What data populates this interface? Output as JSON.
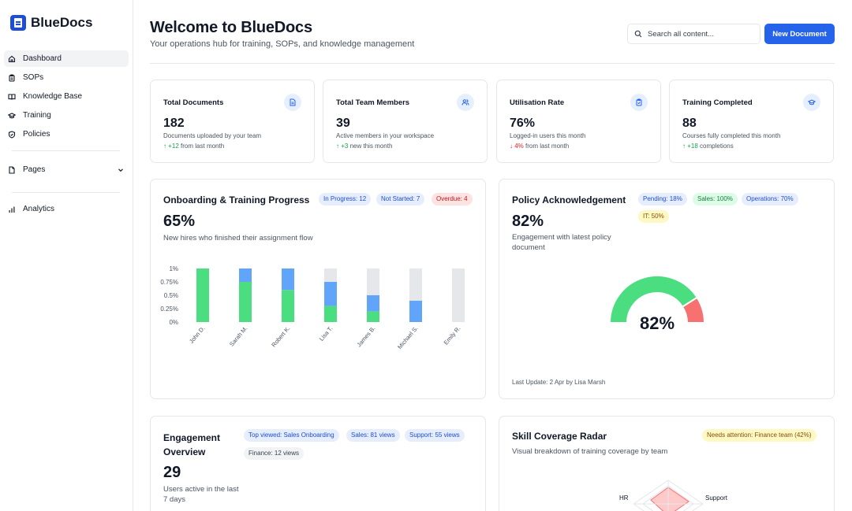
{
  "app": {
    "name": "BlueDocs"
  },
  "sidebar": {
    "items": [
      {
        "label": "Dashboard",
        "icon": "home-icon",
        "active": true
      },
      {
        "label": "SOPs",
        "icon": "clipboard-icon",
        "active": false
      },
      {
        "label": "Knowledge Base",
        "icon": "book-icon",
        "active": false
      },
      {
        "label": "Training",
        "icon": "graduation-cap-icon",
        "active": false
      },
      {
        "label": "Policies",
        "icon": "shield-icon",
        "active": false
      }
    ],
    "pages_label": "Pages",
    "analytics_label": "Analytics"
  },
  "header": {
    "title": "Welcome to BlueDocs",
    "subtitle": "Your operations hub for training, SOPs, and knowledge management",
    "search_placeholder": "Search all content...",
    "new_document_label": "New Document"
  },
  "stats": [
    {
      "label": "Total Documents",
      "value": "182",
      "desc": "Documents uploaded by your team",
      "trend_arrow": "↑",
      "trend_value": "+12",
      "trend_text": "from last month",
      "trend_dir": "up",
      "icon": "document-icon"
    },
    {
      "label": "Total Team Members",
      "value": "39",
      "desc": "Active members in your workspace",
      "trend_arrow": "↑",
      "trend_value": "+3",
      "trend_text": "new this month",
      "trend_dir": "up",
      "icon": "users-icon"
    },
    {
      "label": "Utilisation Rate",
      "value": "76%",
      "desc": "Logged-in users this month",
      "trend_arrow": "↓",
      "trend_value": "4%",
      "trend_text": "from last month",
      "trend_dir": "down",
      "icon": "clipboard-check-icon"
    },
    {
      "label": "Training Completed",
      "value": "88",
      "desc": "Courses fully completed this month",
      "trend_arrow": "↑",
      "trend_value": "+18",
      "trend_text": "completions",
      "trend_dir": "up",
      "icon": "graduation-cap-icon"
    }
  ],
  "onboarding": {
    "title": "Onboarding & Training Progress",
    "pills": [
      "In Progress: 12",
      "Not Started: 7",
      "Overdue: 4"
    ],
    "value": "65%",
    "desc": "New hires who finished their assignment flow"
  },
  "policy": {
    "title": "Policy Acknowledgement",
    "pills": [
      "Pending: 18%",
      "Sales: 100%",
      "Operations: 70%",
      "IT: 50%"
    ],
    "value": "82%",
    "desc": "Engagement with latest policy document",
    "last_update": "Last Update: 2 Apr by Lisa Marsh"
  },
  "engagement": {
    "title_line1": "Engagement",
    "title_line2": "Overview",
    "pills": [
      "Top viewed: Sales Onboarding",
      "Sales: 81 views",
      "Support: 55 views",
      "Finance: 12 views"
    ],
    "value": "29",
    "desc_line1": "Users active in the last",
    "desc_line2": "7 days"
  },
  "skills": {
    "title": "Skill Coverage Radar",
    "pill": "Needs attention: Finance team (42%)",
    "desc": "Visual breakdown of training coverage by team",
    "labels": [
      "HR",
      "Support"
    ]
  },
  "chart_data": [
    {
      "type": "bar",
      "stacked": true,
      "categories": [
        "John D.",
        "Sarah M.",
        "Robert K.",
        "Lisa T.",
        "James B.",
        "Michael S.",
        "Emily R."
      ],
      "series": [
        {
          "values": [
            1.0,
            0.75,
            0.6,
            0.3,
            0.2,
            0.0,
            0.0
          ],
          "color": "#4ade80"
        },
        {
          "values": [
            0.0,
            0.25,
            0.4,
            0.45,
            0.3,
            0.4,
            0.0
          ],
          "color": "#60a5fa"
        },
        {
          "values": [
            0.0,
            0.0,
            0.0,
            0.25,
            0.5,
            0.6,
            1.0
          ],
          "color": "#e5e7eb"
        }
      ],
      "yticks": [
        "0%",
        "0.25%",
        "0.5%",
        "0.75%",
        "1%"
      ],
      "ylim": [
        0,
        1
      ]
    },
    {
      "type": "pie",
      "style": "gauge",
      "label": "82%",
      "values": [
        82,
        18
      ],
      "colors": [
        "#4ade80",
        "#f87171"
      ]
    }
  ]
}
